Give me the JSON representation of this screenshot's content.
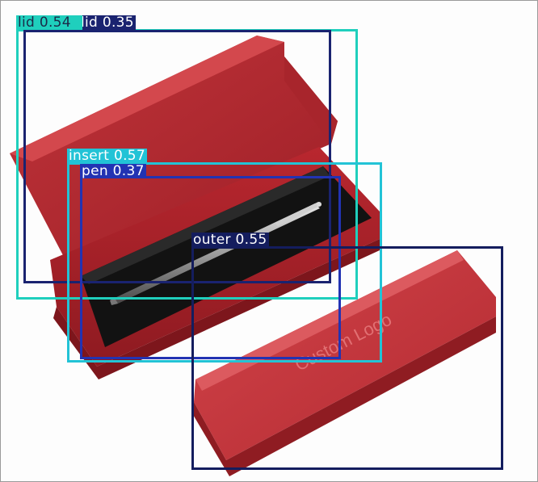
{
  "image": {
    "subject": "red pen gift box with lid open and separate outer sleeve",
    "sleeve_text": "Custom Logo"
  },
  "detections": [
    {
      "class": "lid",
      "score": "0.54",
      "caption": "lid 0.54",
      "color": "#1fcfbd",
      "text_color": "#1b2a48"
    },
    {
      "class": "lid",
      "score": "0.35",
      "caption": "lid 0.35",
      "color": "#1a2370",
      "text_color": "#ffffff"
    },
    {
      "class": "insert",
      "score": "0.57",
      "caption": "insert 0.57",
      "color": "#22c3d6",
      "text_color": "#ffffff"
    },
    {
      "class": "pen",
      "score": "0.37",
      "caption": "pen 0.37",
      "color": "#2233b3",
      "text_color": "#ffffff"
    },
    {
      "class": "outer",
      "score": "0.55",
      "caption": "outer 0.55",
      "color": "#141d5e",
      "text_color": "#ffffff"
    }
  ]
}
